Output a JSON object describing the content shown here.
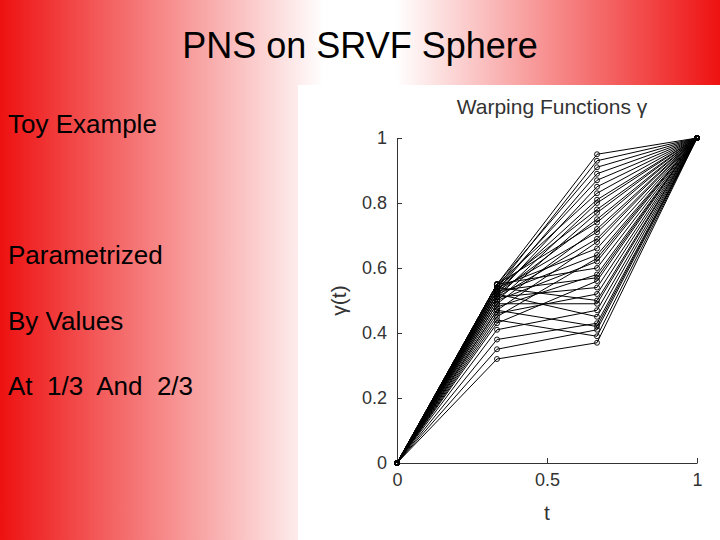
{
  "slide": {
    "title": "PNS on SRVF Sphere",
    "text": [
      "Toy Example",
      "Parametrized",
      "By Values",
      "At  1/3  And  2/3"
    ]
  },
  "chart_data": {
    "type": "line",
    "title": "Warping Functions γ",
    "x_label": "t",
    "y_label": "γ(t)",
    "color": "#000000",
    "marker": "circle",
    "x": [
      0,
      0.3333,
      0.6667,
      1
    ],
    "xlim": [
      0,
      1
    ],
    "ylim": [
      0,
      1
    ],
    "xticks": [
      0,
      0.5,
      1
    ],
    "yticks": [
      0,
      0.2,
      0.4,
      0.6,
      0.8,
      1
    ],
    "series": [
      {
        "values": [
          0,
          0.55,
          0.95,
          1
        ]
      },
      {
        "values": [
          0,
          0.54,
          0.93,
          1
        ]
      },
      {
        "values": [
          0,
          0.55,
          0.91,
          1
        ]
      },
      {
        "values": [
          0,
          0.53,
          0.89,
          1
        ]
      },
      {
        "values": [
          0,
          0.54,
          0.87,
          1
        ]
      },
      {
        "values": [
          0,
          0.52,
          0.85,
          1
        ]
      },
      {
        "values": [
          0,
          0.55,
          0.83,
          1
        ]
      },
      {
        "values": [
          0,
          0.53,
          0.81,
          1
        ]
      },
      {
        "values": [
          0,
          0.51,
          0.8,
          1
        ]
      },
      {
        "values": [
          0,
          0.54,
          0.78,
          1
        ]
      },
      {
        "values": [
          0,
          0.5,
          0.77,
          1
        ]
      },
      {
        "values": [
          0,
          0.52,
          0.75,
          1
        ]
      },
      {
        "values": [
          0,
          0.55,
          0.74,
          1
        ]
      },
      {
        "values": [
          0,
          0.49,
          0.72,
          1
        ]
      },
      {
        "values": [
          0,
          0.53,
          0.71,
          1
        ]
      },
      {
        "values": [
          0,
          0.51,
          0.69,
          1
        ]
      },
      {
        "values": [
          0,
          0.47,
          0.68,
          1
        ]
      },
      {
        "values": [
          0,
          0.54,
          0.66,
          1
        ]
      },
      {
        "values": [
          0,
          0.52,
          0.64,
          1
        ]
      },
      {
        "values": [
          0,
          0.45,
          0.63,
          1
        ]
      },
      {
        "values": [
          0,
          0.5,
          0.62,
          1
        ]
      },
      {
        "values": [
          0,
          0.55,
          0.6,
          1
        ]
      },
      {
        "values": [
          0,
          0.48,
          0.58,
          1
        ]
      },
      {
        "values": [
          0,
          0.53,
          0.57,
          1
        ]
      },
      {
        "values": [
          0,
          0.43,
          0.56,
          1
        ]
      },
      {
        "values": [
          0,
          0.51,
          0.54,
          1
        ]
      },
      {
        "values": [
          0,
          0.46,
          0.52,
          1
        ]
      },
      {
        "values": [
          0,
          0.54,
          0.5,
          1
        ]
      },
      {
        "values": [
          0,
          0.49,
          0.49,
          1
        ]
      },
      {
        "values": [
          0,
          0.41,
          0.47,
          1
        ]
      },
      {
        "values": [
          0,
          0.52,
          0.45,
          1
        ]
      },
      {
        "values": [
          0,
          0.38,
          0.43,
          1
        ]
      },
      {
        "values": [
          0,
          0.47,
          0.42,
          1
        ]
      },
      {
        "values": [
          0,
          0.35,
          0.41,
          1
        ]
      },
      {
        "values": [
          0,
          0.44,
          0.39,
          1
        ]
      },
      {
        "values": [
          0,
          0.32,
          0.37,
          1
        ]
      }
    ]
  }
}
